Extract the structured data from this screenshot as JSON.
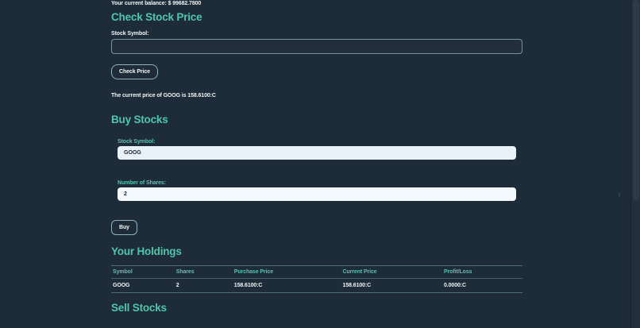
{
  "page": {
    "balance_text": "Your current balance: $ 99682.7800"
  },
  "check_price_section": {
    "title": "Check Stock Price",
    "symbol_label": "Stock Symbol:",
    "symbol_value": "",
    "button_label": "Check Price",
    "result_text": "The current price of GOOG is 158.6100:C"
  },
  "buy_section": {
    "title": "Buy Stocks",
    "symbol_label": "Stock Symbol:",
    "symbol_value": "GOOG",
    "shares_label": "Number of Shares:",
    "shares_value": "2",
    "button_label": "Buy"
  },
  "holdings_section": {
    "title": "Your Holdings",
    "table": {
      "headers": [
        "Symbol",
        "Shares",
        "Purchase Price",
        "Current Price",
        "Profit/Loss"
      ],
      "rows": [
        [
          "GOOG",
          "2",
          "158.6100:C",
          "158.6100:C",
          "0.0000:C"
        ]
      ]
    }
  },
  "sell_section": {
    "title": "Sell Stocks"
  },
  "colors": {
    "background": "#1e2b38",
    "accent_teal": "#4cc7ab",
    "label_teal": "#56c2b0",
    "text_white": "#eef4f4",
    "input_light_bg": "#e9f1fb"
  }
}
